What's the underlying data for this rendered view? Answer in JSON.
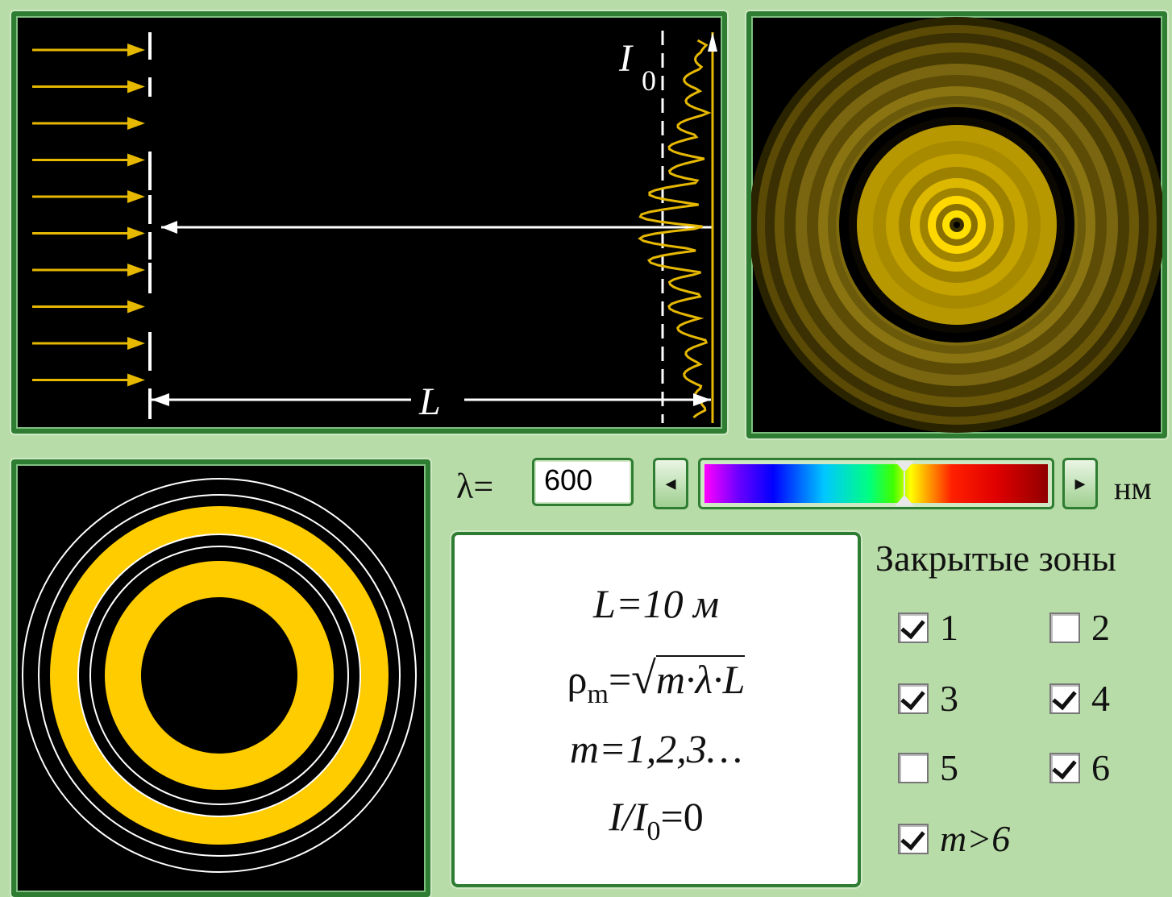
{
  "diagram": {
    "intensity_label": "I",
    "intensity_sub": "0",
    "distance_label": "L"
  },
  "wavelength": {
    "symbol": "λ=",
    "value": "600",
    "unit": "нм",
    "left_arrow": "◂",
    "right_arrow": "▸"
  },
  "formulas": {
    "line1": "L=10 м",
    "line2_lhs": "ρ",
    "line2_sub": "m",
    "line2_rhs": "m·λ·L",
    "line3": "m=1,2,3…",
    "line4_lhs": "I/I",
    "line4_sub": "0",
    "line4_rhs": "=0"
  },
  "zones": {
    "title": "Закрытые зоны",
    "items": [
      {
        "label": "1",
        "checked": true
      },
      {
        "label": "2",
        "checked": false
      },
      {
        "label": "3",
        "checked": true
      },
      {
        "label": "4",
        "checked": true
      },
      {
        "label": "5",
        "checked": false
      },
      {
        "label": "6",
        "checked": true
      },
      {
        "label": "m>6",
        "checked": true
      }
    ]
  },
  "colors": {
    "accent": "#2e7d32",
    "beam": "#e6b800",
    "zone": "#ffcc00",
    "background": "#b8dca8"
  }
}
